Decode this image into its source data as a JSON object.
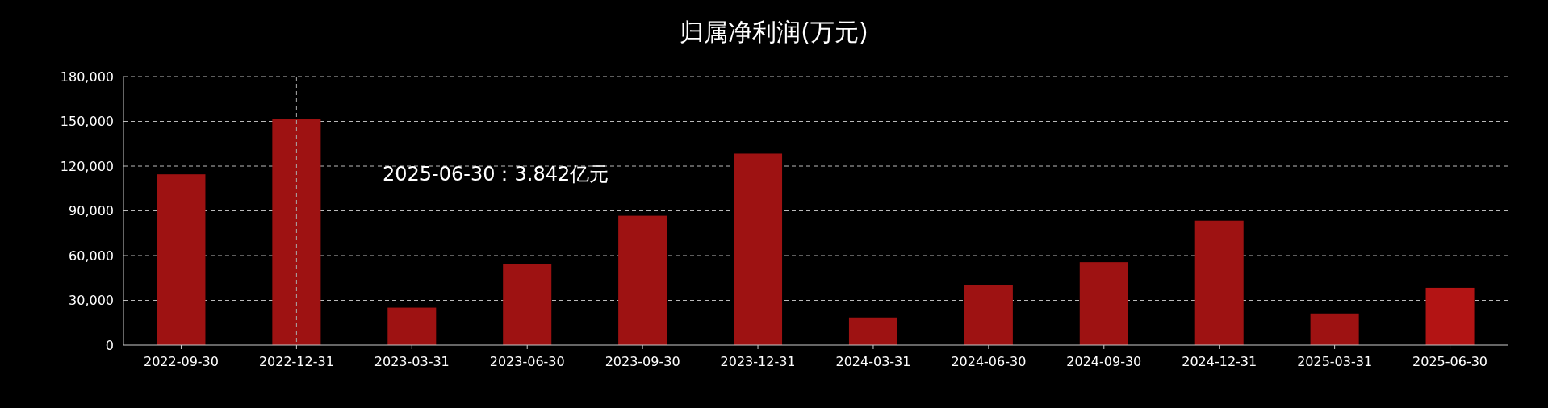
{
  "chart_data": {
    "type": "bar",
    "title": "归属净利润(万元)",
    "categories": [
      "2022-09-30",
      "2022-12-31",
      "2023-03-31",
      "2023-06-30",
      "2023-09-30",
      "2023-12-31",
      "2024-03-31",
      "2024-06-30",
      "2024-09-30",
      "2024-12-31",
      "2025-03-31",
      "2025-06-30"
    ],
    "values": [
      114500,
      151500,
      25100,
      54300,
      86700,
      128400,
      18500,
      40400,
      55600,
      83400,
      21200,
      38420
    ],
    "colors": [
      "#9e1212",
      "#9e1212",
      "#9e1212",
      "#9e1212",
      "#9e1212",
      "#9e1212",
      "#9e1212",
      "#9e1212",
      "#9e1212",
      "#9e1212",
      "#9e1212",
      "#b31414"
    ],
    "ylim": [
      0,
      180000
    ],
    "yticks": [
      0,
      {
        "value": 30000,
        "label": "30,000"
      },
      {
        "value": 60000,
        "label": "60,000"
      },
      {
        "value": 90000,
        "label": "90,000"
      },
      {
        "value": 120000,
        "label": "120,000"
      },
      {
        "value": 150000,
        "label": "150,000"
      },
      {
        "value": 180000,
        "label": "180,000"
      }
    ],
    "grid": "y",
    "ref_lines": [
      {
        "axis": "x",
        "value": "2022-12-31",
        "color": "#aaaaaa",
        "line_style": "dashed"
      }
    ],
    "annotations": [
      "2025-06-30：3.842亿元"
    ]
  }
}
